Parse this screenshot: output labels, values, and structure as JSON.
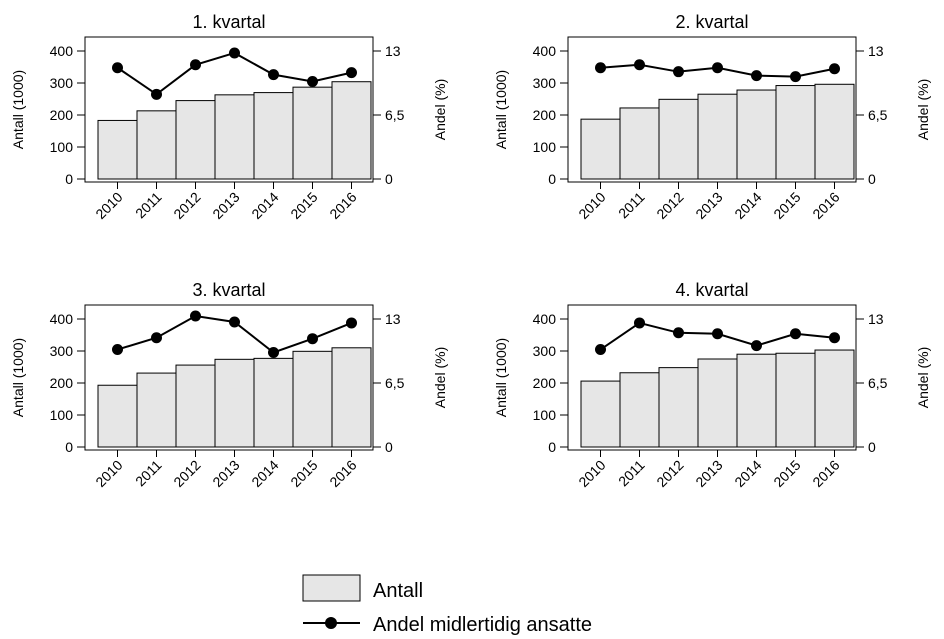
{
  "legend": {
    "bar_label": "Antall",
    "line_label": "Andel midlertidig ansatte"
  },
  "colors": {
    "bar_fill": "#e6e6e6",
    "line": "#000000",
    "axis": "#000000"
  },
  "chart_data": [
    {
      "type": "bar+line",
      "title": "1. kvartal",
      "categories": [
        "2010",
        "2011",
        "2012",
        "2013",
        "2014",
        "2015",
        "2016"
      ],
      "ylabel_left": "Antall (1000)",
      "ylabel_right": "Andel (%)",
      "ylim_left": [
        0,
        400
      ],
      "yticks_left": [
        "0",
        "100",
        "200",
        "300",
        "400"
      ],
      "ylim_right": [
        0,
        13
      ],
      "yticks_right": [
        "0",
        "6,5",
        "13"
      ],
      "series": [
        {
          "name": "Antall",
          "kind": "bar",
          "values": [
            183,
            213,
            245,
            263,
            270,
            287,
            304
          ]
        },
        {
          "name": "Andel midlertidig ansatte",
          "kind": "line",
          "values": [
            11.3,
            8.6,
            11.6,
            12.8,
            10.6,
            9.9,
            10.8
          ]
        }
      ]
    },
    {
      "type": "bar+line",
      "title": "2. kvartal",
      "categories": [
        "2010",
        "2011",
        "2012",
        "2013",
        "2014",
        "2015",
        "2016"
      ],
      "ylabel_left": "Antall (1000)",
      "ylabel_right": "Andel (%)",
      "ylim_left": [
        0,
        400
      ],
      "yticks_left": [
        "0",
        "100",
        "200",
        "300",
        "400"
      ],
      "ylim_right": [
        0,
        13
      ],
      "yticks_right": [
        "0",
        "6,5",
        "13"
      ],
      "series": [
        {
          "name": "Antall",
          "kind": "bar",
          "values": [
            187,
            222,
            249,
            265,
            278,
            292,
            296
          ]
        },
        {
          "name": "Andel midlertidig ansatte",
          "kind": "line",
          "values": [
            11.3,
            11.6,
            10.9,
            11.3,
            10.5,
            10.4,
            11.2
          ]
        }
      ]
    },
    {
      "type": "bar+line",
      "title": "3. kvartal",
      "categories": [
        "2010",
        "2011",
        "2012",
        "2013",
        "2014",
        "2015",
        "2016"
      ],
      "ylabel_left": "Antall (1000)",
      "ylabel_right": "Andel (%)",
      "ylim_left": [
        0,
        400
      ],
      "yticks_left": [
        "0",
        "100",
        "200",
        "300",
        "400"
      ],
      "ylim_right": [
        0,
        13
      ],
      "yticks_right": [
        "0",
        "6,5",
        "13"
      ],
      "series": [
        {
          "name": "Antall",
          "kind": "bar",
          "values": [
            193,
            231,
            256,
            274,
            277,
            299,
            310
          ]
        },
        {
          "name": "Andel midlertidig ansatte",
          "kind": "line",
          "values": [
            9.9,
            11.1,
            13.3,
            12.7,
            9.6,
            11.0,
            12.6
          ]
        }
      ]
    },
    {
      "type": "bar+line",
      "title": "4. kvartal",
      "categories": [
        "2010",
        "2011",
        "2012",
        "2013",
        "2014",
        "2015",
        "2016"
      ],
      "ylabel_left": "Antall (1000)",
      "ylabel_right": "Andel (%)",
      "ylim_left": [
        0,
        400
      ],
      "yticks_left": [
        "0",
        "100",
        "200",
        "300",
        "400"
      ],
      "ylim_right": [
        0,
        13
      ],
      "yticks_right": [
        "0",
        "6,5",
        "13"
      ],
      "series": [
        {
          "name": "Antall",
          "kind": "bar",
          "values": [
            206,
            232,
            248,
            275,
            290,
            293,
            303
          ]
        },
        {
          "name": "Andel midlertidig ansatte",
          "kind": "line",
          "values": [
            9.9,
            12.6,
            11.6,
            11.5,
            10.3,
            11.5,
            11.1
          ]
        }
      ]
    }
  ]
}
